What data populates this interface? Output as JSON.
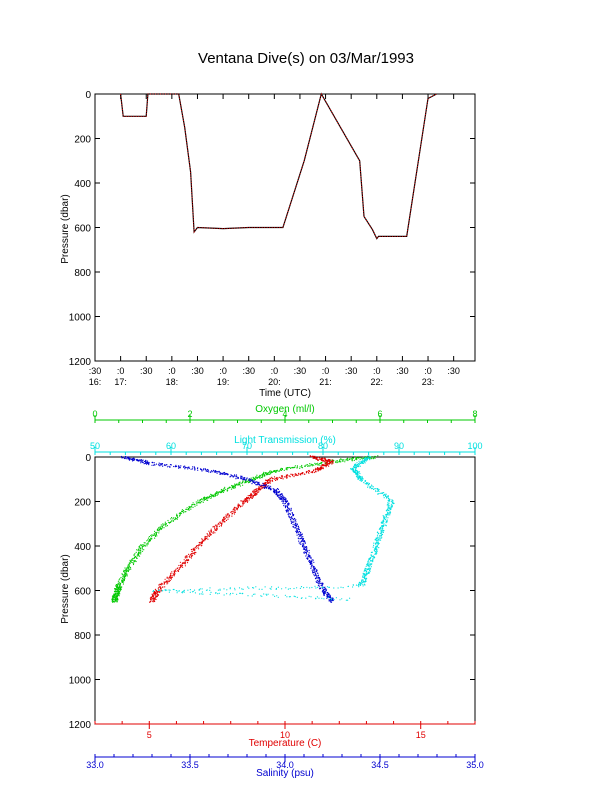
{
  "title": "Ventana Dive(s) on 03/Mar/1993",
  "colors": {
    "axis": "#000000",
    "pressure_trace": "#000000",
    "pressure_trace_overlay": "#ff0000",
    "oxygen": "#00c800",
    "light_transmission": "#00e0e0",
    "temperature": "#e00000",
    "salinity": "#0000d0"
  },
  "chart_data": [
    {
      "type": "line",
      "name": "time-series",
      "xlabel": "Time (UTC)",
      "ylabel": "Pressure (dbar)",
      "ylim": [
        1200,
        0
      ],
      "yticks": [
        "0",
        "200",
        "400",
        "600",
        "800",
        "1000",
        "1200"
      ],
      "xlim": [
        "16:30",
        "23:55"
      ],
      "xtick_labels": [
        {
          "top": ":30",
          "bottom": "16:"
        },
        {
          "top": ":0",
          "bottom": "17:"
        },
        {
          "top": ":30",
          "bottom": ""
        },
        {
          "top": ":0",
          "bottom": "18:"
        },
        {
          "top": ":30",
          "bottom": ""
        },
        {
          "top": ":0",
          "bottom": "19:"
        },
        {
          "top": ":30",
          "bottom": ""
        },
        {
          "top": ":0",
          "bottom": "20:"
        },
        {
          "top": ":30",
          "bottom": ""
        },
        {
          "top": ":0",
          "bottom": "21:"
        },
        {
          "top": ":30",
          "bottom": ""
        },
        {
          "top": ":0",
          "bottom": "22:"
        },
        {
          "top": ":30",
          "bottom": ""
        },
        {
          "top": ":0",
          "bottom": "23:"
        },
        {
          "top": ":30",
          "bottom": ""
        }
      ],
      "series": [
        {
          "time": [
            "17:00",
            "17:03",
            "17:30",
            "17:32",
            "17:35",
            "17:58",
            "18:08",
            "18:15",
            "18:22",
            "18:26",
            "18:30",
            "19:00",
            "19:30",
            "20:10",
            "20:35",
            "20:55",
            "21:40",
            "21:45",
            "21:55",
            "22:00",
            "22:02",
            "22:15",
            "22:30",
            "22:35",
            "23:00",
            "23:10"
          ],
          "pressure": [
            0,
            100,
            100,
            0,
            0,
            0,
            0,
            150,
            350,
            620,
            600,
            605,
            600,
            600,
            300,
            0,
            300,
            550,
            610,
            650,
            640,
            640,
            640,
            640,
            20,
            0
          ]
        }
      ]
    },
    {
      "type": "scatter",
      "name": "profiles",
      "ylabel": "Pressure (dbar)",
      "ylim": [
        1200,
        0
      ],
      "yticks": [
        "0",
        "200",
        "400",
        "600",
        "800",
        "1000",
        "1200"
      ],
      "axes": {
        "oxygen": {
          "label": "Oxygen (ml/l)",
          "range": [
            0,
            8
          ],
          "ticks": [
            "0",
            "2",
            "4",
            "6",
            "8"
          ]
        },
        "light_transmission": {
          "label": "Light Transmission (%)",
          "range": [
            50,
            100
          ],
          "ticks": [
            "50",
            "60",
            "70",
            "80",
            "90",
            "100"
          ]
        },
        "temperature": {
          "label": "Temperature (C)",
          "range": [
            3,
            17
          ],
          "ticks": [
            "5",
            "10",
            "15"
          ]
        },
        "salinity": {
          "label": "Salinity (psu)",
          "range": [
            33.0,
            35.0
          ],
          "ticks": [
            "33.0",
            "33.5",
            "34.0",
            "34.5",
            "35.0"
          ]
        }
      },
      "series": [
        {
          "axis": "oxygen",
          "pressure": [
            0,
            20,
            60,
            100,
            150,
            200,
            300,
            400,
            500,
            580,
            620,
            650
          ],
          "value": [
            5.9,
            5.0,
            3.8,
            3.3,
            2.7,
            2.2,
            1.5,
            1.0,
            0.7,
            0.5,
            0.45,
            0.4
          ]
        },
        {
          "axis": "temperature",
          "pressure": [
            0,
            20,
            60,
            100,
            150,
            200,
            300,
            400,
            500,
            600,
            650
          ],
          "value": [
            11.0,
            11.7,
            11.2,
            9.5,
            9.0,
            8.5,
            7.6,
            6.8,
            6.1,
            5.3,
            5.1
          ]
        },
        {
          "axis": "salinity",
          "pressure": [
            0,
            30,
            60,
            100,
            150,
            200,
            300,
            400,
            500,
            600,
            650
          ],
          "value": [
            33.15,
            33.3,
            33.6,
            33.8,
            33.95,
            34.0,
            34.05,
            34.1,
            34.15,
            34.2,
            34.25
          ]
        },
        {
          "axis": "light_transmission",
          "pressure": [
            0,
            50,
            100,
            200,
            300,
            400,
            500,
            580,
            600,
            640
          ],
          "value": [
            86,
            84,
            85,
            89,
            88,
            87,
            86,
            85,
            58,
            84
          ]
        }
      ]
    }
  ]
}
